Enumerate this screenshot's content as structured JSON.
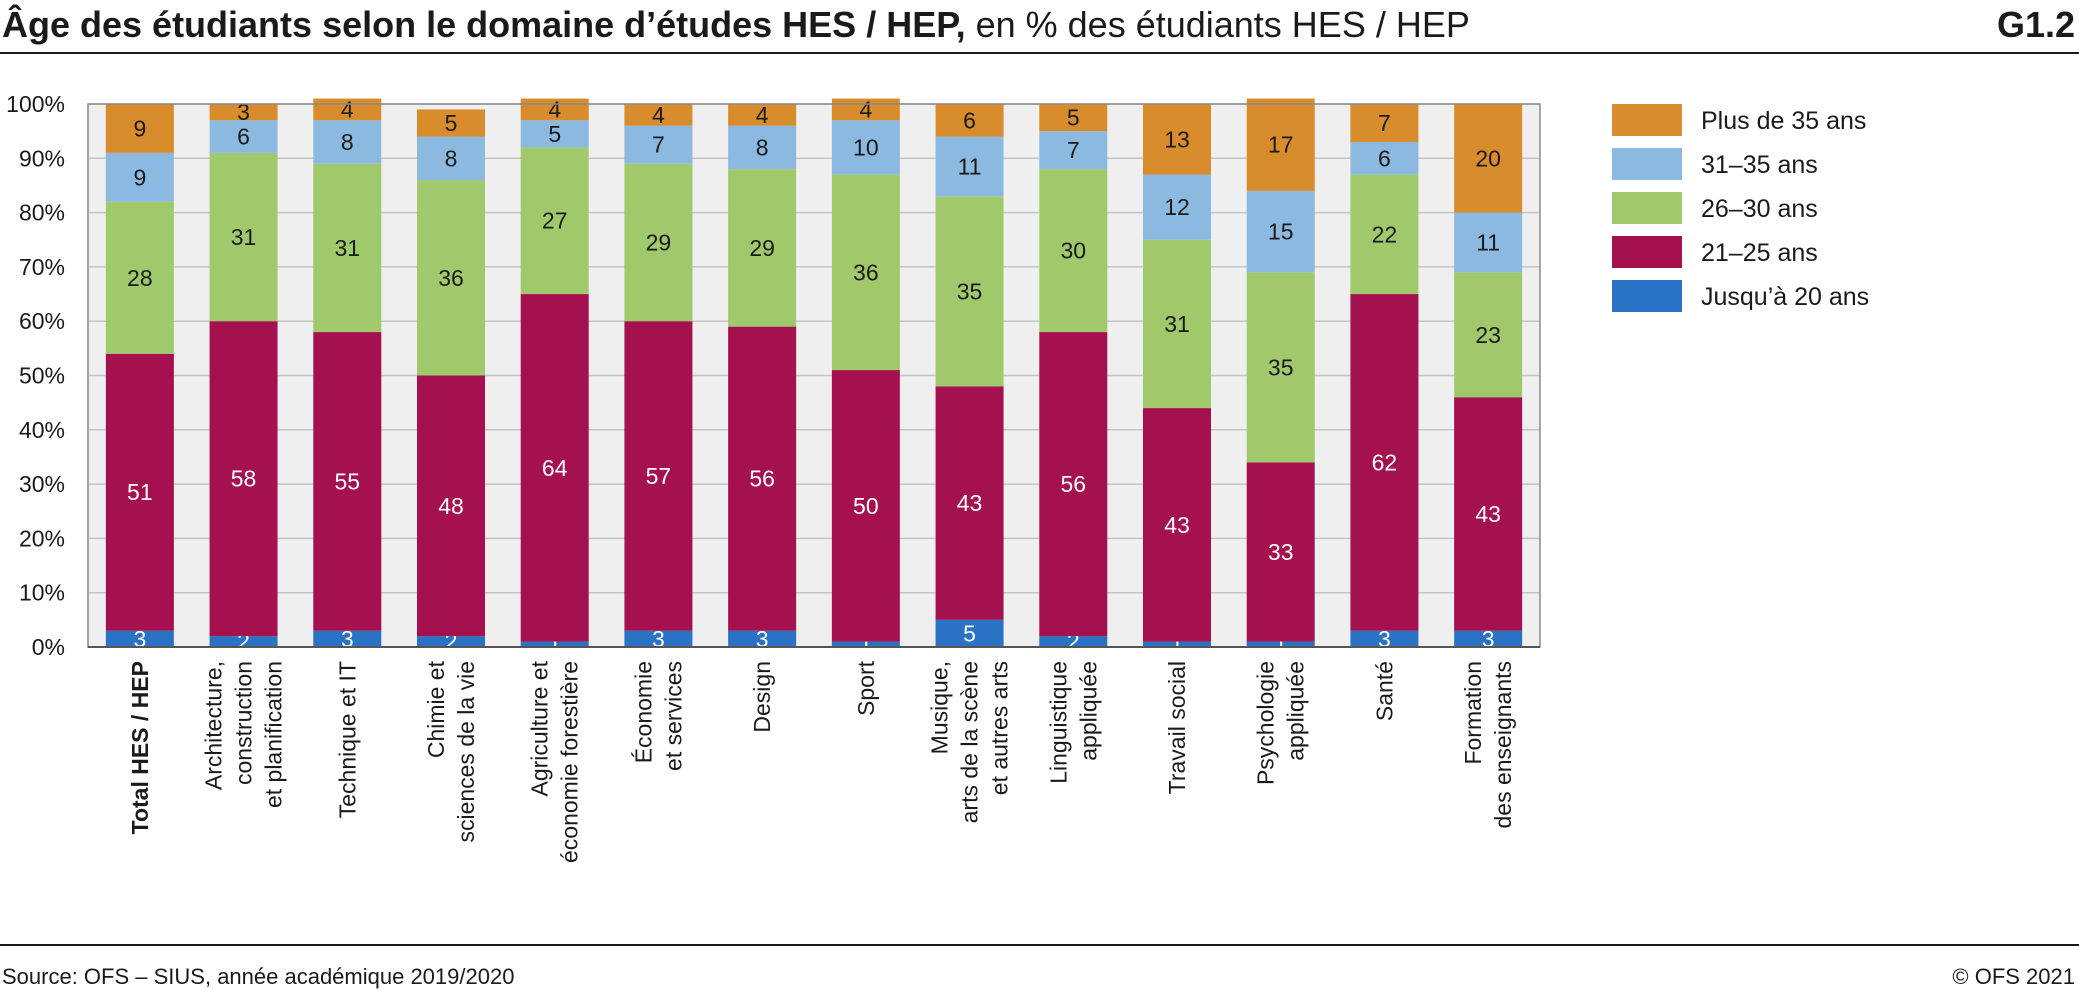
{
  "header": {
    "title_bold": "Âge des étudiants selon le domaine d’études HES / HEP,",
    "title_rest": " en % des étudiants HES / HEP",
    "code": "G1.2"
  },
  "footer": {
    "source": "Source: OFS – SIUS, année académique 2019/2020",
    "copyright": "© OFS 2021"
  },
  "chart_data": {
    "type": "bar",
    "stacked": true,
    "orientation": "vertical",
    "ylim": [
      0,
      100
    ],
    "yticks": [
      "0%",
      "10%",
      "20%",
      "30%",
      "40%",
      "50%",
      "60%",
      "70%",
      "80%",
      "90%",
      "100%"
    ],
    "grid": true,
    "legend_position": "right",
    "categories": [
      "Total HES / HEP",
      "Architecture,\nconstruction\net planification",
      "Technique et IT",
      "Chimie et\nsciences de la vie",
      "Agriculture et\néconomie forestière",
      "Économie\net services",
      "Design",
      "Sport",
      "Musique,\narts de la scène\net autres arts",
      "Linguistique\nappliquée",
      "Travail social",
      "Psychologie\nappliquée",
      "Santé",
      "Formation\ndes enseignants"
    ],
    "bold_categories": [
      0
    ],
    "series": [
      {
        "name": "Jusqu’à 20 ans",
        "color": "#2a72c3",
        "values": [
          3,
          2,
          3,
          2,
          1,
          3,
          3,
          1,
          5,
          2,
          1,
          1,
          3,
          3
        ]
      },
      {
        "name": "21–25 ans",
        "color": "#a5114e",
        "values": [
          51,
          58,
          55,
          48,
          64,
          57,
          56,
          50,
          43,
          56,
          43,
          33,
          62,
          43
        ]
      },
      {
        "name": "26–30 ans",
        "color": "#a0c96c",
        "values": [
          28,
          31,
          31,
          36,
          27,
          29,
          29,
          36,
          35,
          30,
          31,
          35,
          22,
          23
        ]
      },
      {
        "name": "31–35 ans",
        "color": "#8cb9df",
        "values": [
          9,
          6,
          8,
          8,
          5,
          7,
          8,
          10,
          11,
          7,
          12,
          15,
          6,
          11
        ]
      },
      {
        "name": "Plus de 35 ans",
        "color": "#d98c2b",
        "values": [
          9,
          3,
          4,
          5,
          4,
          4,
          4,
          4,
          6,
          5,
          13,
          17,
          7,
          20
        ]
      }
    ],
    "legend_order": [
      "Plus de 35 ans",
      "31–35 ans",
      "26–30 ans",
      "21–25 ans",
      "Jusqu’à 20 ans"
    ]
  }
}
